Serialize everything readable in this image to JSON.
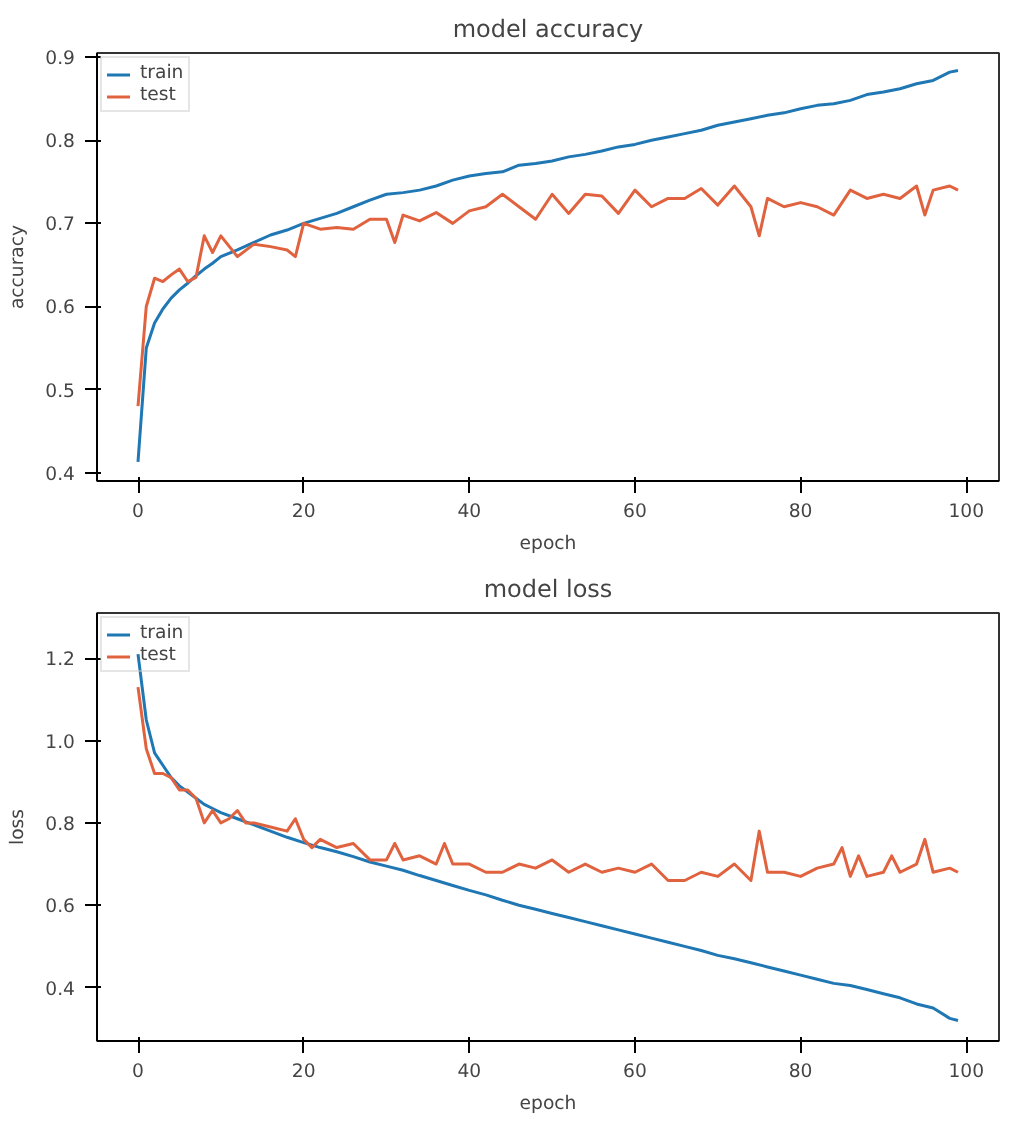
{
  "chart_data": [
    {
      "type": "line",
      "title": "model accuracy",
      "xlabel": "epoch",
      "ylabel": "accuracy",
      "xlim": [
        -4.95,
        103.95
      ],
      "ylim": [
        0.39,
        0.905
      ],
      "xticks": [
        0,
        20,
        40,
        60,
        80,
        100
      ],
      "yticks": [
        {
          "value": 0.4,
          "label": "0.4"
        },
        {
          "value": 0.5,
          "label": "0.5"
        },
        {
          "value": 0.6,
          "label": "0.6"
        },
        {
          "value": 0.7,
          "label": "0.7"
        },
        {
          "value": 0.8,
          "label": "0.8"
        },
        {
          "value": 0.9,
          "label": "0.9"
        }
      ],
      "legend": "top left",
      "grid": false,
      "series": [
        {
          "name": "train",
          "color": "#1f77b4",
          "x": [
            0,
            1,
            2,
            3,
            4,
            5,
            6,
            7,
            8,
            9,
            10,
            12,
            14,
            16,
            18,
            20,
            22,
            24,
            26,
            28,
            30,
            32,
            34,
            36,
            38,
            40,
            42,
            44,
            46,
            48,
            50,
            52,
            54,
            56,
            58,
            60,
            62,
            64,
            66,
            68,
            70,
            72,
            74,
            76,
            78,
            80,
            82,
            84,
            86,
            88,
            90,
            92,
            94,
            96,
            98,
            99
          ],
          "values": [
            0.413,
            0.55,
            0.58,
            0.597,
            0.61,
            0.62,
            0.628,
            0.637,
            0.645,
            0.652,
            0.66,
            0.668,
            0.677,
            0.686,
            0.692,
            0.7,
            0.706,
            0.712,
            0.72,
            0.728,
            0.735,
            0.737,
            0.74,
            0.745,
            0.752,
            0.757,
            0.76,
            0.762,
            0.77,
            0.772,
            0.775,
            0.78,
            0.783,
            0.787,
            0.792,
            0.795,
            0.8,
            0.804,
            0.808,
            0.812,
            0.818,
            0.822,
            0.826,
            0.83,
            0.833,
            0.838,
            0.842,
            0.844,
            0.848,
            0.855,
            0.858,
            0.862,
            0.868,
            0.872,
            0.882,
            0.884
          ]
        },
        {
          "name": "test",
          "color": "#e0623e",
          "x": [
            0,
            1,
            2,
            3,
            4,
            5,
            6,
            7,
            8,
            9,
            10,
            12,
            14,
            16,
            18,
            19,
            20,
            22,
            24,
            26,
            28,
            30,
            31,
            32,
            34,
            36,
            38,
            40,
            42,
            44,
            46,
            48,
            50,
            52,
            54,
            56,
            58,
            60,
            62,
            64,
            66,
            68,
            70,
            72,
            74,
            75,
            76,
            78,
            80,
            82,
            84,
            86,
            88,
            90,
            92,
            94,
            95,
            96,
            98,
            99
          ],
          "values": [
            0.48,
            0.6,
            0.634,
            0.63,
            0.638,
            0.645,
            0.63,
            0.635,
            0.685,
            0.665,
            0.685,
            0.66,
            0.675,
            0.672,
            0.668,
            0.66,
            0.7,
            0.693,
            0.695,
            0.693,
            0.705,
            0.705,
            0.677,
            0.71,
            0.703,
            0.713,
            0.7,
            0.715,
            0.72,
            0.735,
            0.72,
            0.705,
            0.735,
            0.712,
            0.735,
            0.733,
            0.712,
            0.74,
            0.72,
            0.73,
            0.73,
            0.742,
            0.722,
            0.745,
            0.72,
            0.685,
            0.73,
            0.72,
            0.725,
            0.72,
            0.71,
            0.74,
            0.73,
            0.735,
            0.73,
            0.745,
            0.71,
            0.74,
            0.745,
            0.74
          ]
        }
      ]
    },
    {
      "type": "line",
      "title": "model loss",
      "xlabel": "epoch",
      "ylabel": "loss",
      "xlim": [
        -4.95,
        103.95
      ],
      "ylim": [
        0.27,
        1.31
      ],
      "xticks": [
        0,
        20,
        40,
        60,
        80,
        100
      ],
      "yticks": [
        {
          "value": 0.4,
          "label": "0.4"
        },
        {
          "value": 0.6,
          "label": "0.6"
        },
        {
          "value": 0.8,
          "label": "0.8"
        },
        {
          "value": 1.0,
          "label": "1.0"
        },
        {
          "value": 1.2,
          "label": "1.2"
        }
      ],
      "legend": "top left",
      "grid": false,
      "series": [
        {
          "name": "train",
          "color": "#1f77b4",
          "x": [
            0,
            1,
            2,
            3,
            4,
            5,
            6,
            7,
            8,
            9,
            10,
            12,
            14,
            16,
            18,
            20,
            22,
            24,
            26,
            28,
            30,
            32,
            34,
            36,
            38,
            40,
            42,
            44,
            46,
            48,
            50,
            52,
            54,
            56,
            58,
            60,
            62,
            64,
            66,
            68,
            70,
            72,
            74,
            76,
            78,
            80,
            82,
            84,
            86,
            88,
            90,
            92,
            94,
            96,
            98,
            99
          ],
          "values": [
            1.21,
            1.05,
            0.97,
            0.94,
            0.91,
            0.89,
            0.875,
            0.86,
            0.845,
            0.835,
            0.825,
            0.81,
            0.795,
            0.78,
            0.765,
            0.752,
            0.74,
            0.73,
            0.718,
            0.705,
            0.695,
            0.685,
            0.672,
            0.66,
            0.648,
            0.636,
            0.625,
            0.612,
            0.6,
            0.59,
            0.58,
            0.57,
            0.56,
            0.55,
            0.54,
            0.53,
            0.52,
            0.51,
            0.5,
            0.49,
            0.478,
            0.47,
            0.46,
            0.45,
            0.44,
            0.43,
            0.42,
            0.41,
            0.405,
            0.395,
            0.385,
            0.375,
            0.36,
            0.35,
            0.325,
            0.32
          ]
        },
        {
          "name": "test",
          "color": "#e0623e",
          "x": [
            0,
            1,
            2,
            3,
            4,
            5,
            6,
            7,
            8,
            9,
            10,
            11,
            12,
            13,
            14,
            16,
            18,
            19,
            20,
            21,
            22,
            24,
            26,
            28,
            30,
            31,
            32,
            34,
            36,
            37,
            38,
            40,
            42,
            44,
            46,
            48,
            50,
            52,
            54,
            56,
            58,
            60,
            62,
            64,
            66,
            68,
            70,
            72,
            74,
            75,
            76,
            78,
            80,
            82,
            84,
            85,
            86,
            87,
            88,
            90,
            91,
            92,
            94,
            95,
            96,
            98,
            99
          ],
          "values": [
            1.13,
            0.98,
            0.92,
            0.92,
            0.91,
            0.88,
            0.88,
            0.86,
            0.8,
            0.83,
            0.8,
            0.81,
            0.83,
            0.8,
            0.8,
            0.79,
            0.78,
            0.81,
            0.76,
            0.74,
            0.76,
            0.74,
            0.75,
            0.71,
            0.71,
            0.75,
            0.71,
            0.72,
            0.7,
            0.75,
            0.7,
            0.7,
            0.68,
            0.68,
            0.7,
            0.69,
            0.71,
            0.68,
            0.7,
            0.68,
            0.69,
            0.68,
            0.7,
            0.66,
            0.66,
            0.68,
            0.67,
            0.7,
            0.66,
            0.78,
            0.68,
            0.68,
            0.67,
            0.69,
            0.7,
            0.74,
            0.67,
            0.72,
            0.67,
            0.68,
            0.72,
            0.68,
            0.7,
            0.76,
            0.68,
            0.69,
            0.68
          ]
        }
      ]
    }
  ]
}
